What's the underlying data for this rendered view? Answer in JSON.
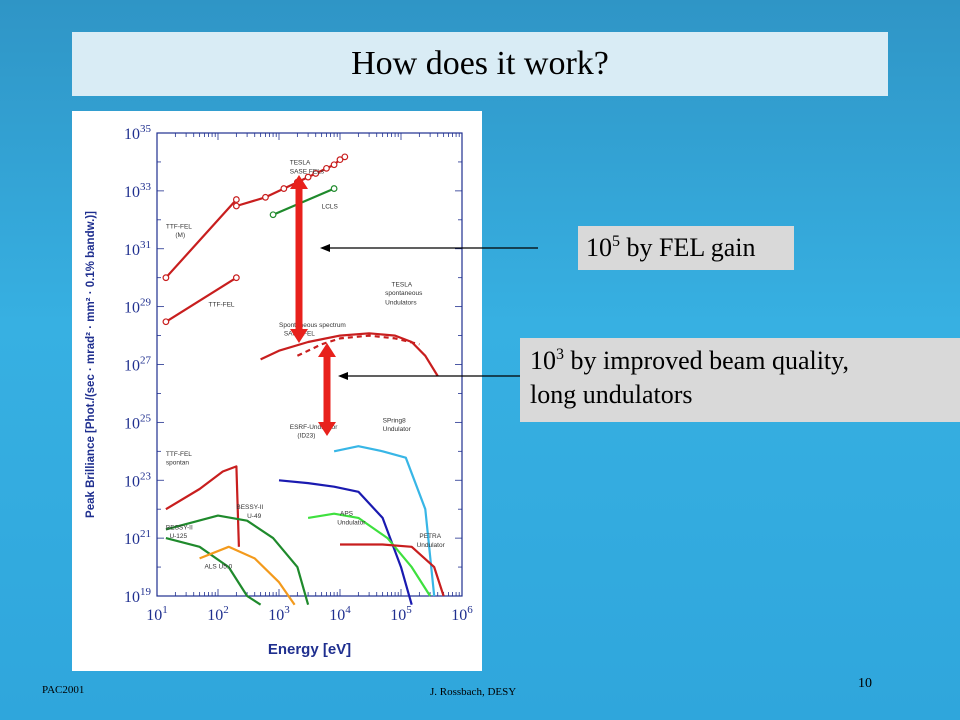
{
  "slide": {
    "title": "How does it work?",
    "footer_left": "PAC2001",
    "footer_center": "J. Rossbach, DESY",
    "page_number": "10"
  },
  "callouts": [
    {
      "base": "10",
      "exp": "5",
      "text": " by FEL gain"
    },
    {
      "base": "10",
      "exp": "3",
      "text": " by improved beam quality,",
      "line2": "long undulators"
    }
  ],
  "colors": {
    "background": "#34a8dc",
    "title_bar": "#d9ecf5",
    "callout": "#d9d9d9",
    "axis_blue": "#1f2f8f",
    "red": "#c81e1e",
    "green": "#1f8a2c",
    "blue": "#1a1ab0",
    "cyan": "#38b6e6",
    "lightgreen": "#3ee03e",
    "orange": "#f39a1c",
    "arrow_red": "#e8211c"
  },
  "chart_data": {
    "type": "line",
    "xlabel": "Energy [eV]",
    "ylabel": "Peak Brilliance [Phot./(sec · mrad² · mm² · 0.1% bandw.)]",
    "xscale": "log",
    "yscale": "log",
    "xlim": [
      10,
      1000000
    ],
    "ylim": [
      1e+19,
      1e+35
    ],
    "x_ticks": [
      {
        "base": "10",
        "exp": "1",
        "value": 10
      },
      {
        "base": "10",
        "exp": "2",
        "value": 100
      },
      {
        "base": "10",
        "exp": "3",
        "value": 1000
      },
      {
        "base": "10",
        "exp": "4",
        "value": 10000
      },
      {
        "base": "10",
        "exp": "5",
        "value": 100000
      },
      {
        "base": "10",
        "exp": "6",
        "value": 1000000
      }
    ],
    "y_ticks": [
      {
        "base": "10",
        "exp": "19",
        "value": 1e+19
      },
      {
        "base": "10",
        "exp": "21",
        "value": 1e+21
      },
      {
        "base": "10",
        "exp": "23",
        "value": 1e+23
      },
      {
        "base": "10",
        "exp": "25",
        "value": 1e+25
      },
      {
        "base": "10",
        "exp": "27",
        "value": 1e+27
      },
      {
        "base": "10",
        "exp": "29",
        "value": 1e+29
      },
      {
        "base": "10",
        "exp": "31",
        "value": 1e+31
      },
      {
        "base": "10",
        "exp": "33",
        "value": 1e+33
      },
      {
        "base": "10",
        "exp": "35",
        "value": 1e+35
      }
    ],
    "series": [
      {
        "name": "TESLA SASE FELs",
        "color": "#c81e1e",
        "markers": true,
        "x": [
          200,
          600,
          1200,
          2000,
          3000,
          4000,
          6000,
          8000,
          10000,
          12000
        ],
        "y": [
          3e+32,
          6e+32,
          1.2e+33,
          2e+33,
          3e+33,
          4e+33,
          6e+33,
          8e+33,
          1.2e+34,
          1.5e+34
        ]
      },
      {
        "name": "TTF-FEL (M)",
        "color": "#c81e1e",
        "markers": true,
        "x": [
          14,
          200
        ],
        "y": [
          1e+30,
          5e+32
        ]
      },
      {
        "name": "TTF-FEL",
        "color": "#c81e1e",
        "markers": true,
        "x": [
          14,
          200
        ],
        "y": [
          3e+28,
          1e+30
        ]
      },
      {
        "name": "LCLS",
        "color": "#1f8a2c",
        "markers": true,
        "x": [
          800,
          8000
        ],
        "y": [
          1.5e+32,
          1.2e+33
        ]
      },
      {
        "name": "TESLA spontaneous Undulators",
        "color": "#c81e1e",
        "markers": false,
        "x": [
          500,
          1000,
          3000,
          10000,
          30000,
          80000,
          150000,
          250000,
          400000
        ],
        "y": [
          1.5e+27,
          3e+27,
          6e+27,
          1e+28,
          1.2e+28,
          1e+28,
          6e+27,
          2e+27,
          4e+26
        ]
      },
      {
        "name": "Spontaneous spectrum SASE FEL",
        "color": "#c81e1e",
        "markers": false,
        "x": [
          2000,
          5000,
          10000,
          30000,
          80000,
          200000
        ],
        "y": [
          2e+27,
          5e+27,
          8e+27,
          1e+28,
          8e+27,
          5e+27
        ]
      },
      {
        "name": "TTF-FEL spontan",
        "color": "#c81e1e",
        "markers": false,
        "x": [
          14,
          50,
          120,
          200,
          220
        ],
        "y": [
          1e+22,
          5e+22,
          2e+23,
          3e+23,
          5e+20
        ]
      },
      {
        "name": "ESRF-Undulator (ID23)",
        "color": "#1a1ab0",
        "markers": false,
        "x": [
          1000,
          3000,
          8000,
          20000,
          50000,
          100000,
          150000
        ],
        "y": [
          1e+23,
          8e+22,
          6e+22,
          4e+22,
          5e+21,
          1e+20,
          5e+18
        ]
      },
      {
        "name": "SPring8 Undulator",
        "color": "#38b6e6",
        "markers": false,
        "x": [
          8000,
          20000,
          50000,
          120000,
          250000,
          350000
        ],
        "y": [
          1e+24,
          1.5e+24,
          1e+24,
          6e+23,
          1e+22,
          1e+19
        ]
      },
      {
        "name": "APS Undulator",
        "color": "#3ee03e",
        "markers": false,
        "x": [
          3000,
          8000,
          20000,
          60000,
          150000,
          300000
        ],
        "y": [
          5e+21,
          7e+21,
          5e+21,
          1e+21,
          1e+20,
          1e+19
        ]
      },
      {
        "name": "PETRA Undulator",
        "color": "#c81e1e",
        "markers": false,
        "x": [
          10000,
          50000,
          150000,
          350000,
          500000
        ],
        "y": [
          6e+20,
          6e+20,
          5e+20,
          1e+20,
          1e+19
        ]
      },
      {
        "name": "BESSY-II U-49",
        "color": "#1f8a2c",
        "markers": false,
        "x": [
          14,
          100,
          300,
          800,
          2000,
          3000
        ],
        "y": [
          2e+21,
          6e+21,
          4e+21,
          1e+21,
          1e+20,
          5e+18
        ]
      },
      {
        "name": "BESSY-II U-125",
        "color": "#1f8a2c",
        "markers": false,
        "x": [
          14,
          50,
          150,
          300,
          500
        ],
        "y": [
          1e+21,
          5e+20,
          1e+20,
          1e+19,
          5e+18
        ]
      },
      {
        "name": "ALS U5.0",
        "color": "#f39a1c",
        "markers": false,
        "x": [
          50,
          150,
          400,
          1000,
          1800
        ],
        "y": [
          2e+20,
          5e+20,
          2e+20,
          3e+19,
          5e+18
        ]
      }
    ],
    "annotations": [
      {
        "text": "TESLA",
        "x": 1500,
        "y": 8e+33
      },
      {
        "text": "SASE FELs",
        "x": 1500,
        "y": 4e+33
      },
      {
        "text": "TTF-FEL",
        "x": 14,
        "y": 5e+31
      },
      {
        "text": "(M)",
        "x": 20,
        "y": 2.5e+31
      },
      {
        "text": "TTF-FEL",
        "x": 70,
        "y": 1e+29
      },
      {
        "text": "LCLS",
        "x": 5000,
        "y": 2.5e+32
      },
      {
        "text": "TESLA",
        "x": 70000,
        "y": 5e+29
      },
      {
        "text": "spontaneous",
        "x": 55000,
        "y": 2.5e+29
      },
      {
        "text": "Undulators",
        "x": 55000,
        "y": 1.2e+29
      },
      {
        "text": "Spontaneous spectrum",
        "x": 1000,
        "y": 2e+28
      },
      {
        "text": "SASE FEL",
        "x": 1200,
        "y": 1e+28
      },
      {
        "text": "ESRF-Undulator",
        "x": 1500,
        "y": 6e+24
      },
      {
        "text": "(ID23)",
        "x": 2000,
        "y": 3e+24
      },
      {
        "text": "SPring8",
        "x": 50000,
        "y": 1e+25
      },
      {
        "text": "Undulator",
        "x": 50000,
        "y": 5e+24
      },
      {
        "text": "TTF-FEL",
        "x": 14,
        "y": 7e+23
      },
      {
        "text": "spontan",
        "x": 14,
        "y": 3.5e+23
      },
      {
        "text": "BESSY-II",
        "x": 200,
        "y": 1e+22
      },
      {
        "text": "U-49",
        "x": 300,
        "y": 5e+21
      },
      {
        "text": "APS",
        "x": 10000,
        "y": 6e+21
      },
      {
        "text": "Undulator",
        "x": 9000,
        "y": 3e+21
      },
      {
        "text": "BESSY-II",
        "x": 14,
        "y": 2e+21
      },
      {
        "text": "U-125",
        "x": 16,
        "y": 1e+21
      },
      {
        "text": "ALS U5.0",
        "x": 60,
        "y": 9e+19
      },
      {
        "text": "PETRA",
        "x": 200000,
        "y": 1e+21
      },
      {
        "text": "Undulator",
        "x": 180000,
        "y": 5e+20
      }
    ]
  }
}
